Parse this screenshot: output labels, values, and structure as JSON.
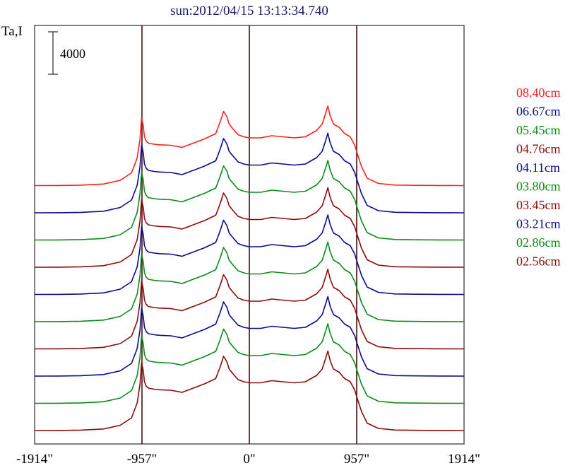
{
  "chart_data": {
    "type": "line",
    "title": "sun:2012/04/15 13:13:34.740",
    "ylabel": "Ta,I",
    "scale_bar_label": "4000",
    "scale_bar_value": 4000,
    "xlim": [
      -1914,
      1914
    ],
    "x_ticks": [
      -1914,
      -957,
      0,
      957,
      1914
    ],
    "x_tick_labels": [
      "-1914\"",
      "-957\"",
      "0\"",
      "957\"",
      "1914\""
    ],
    "vertical_lines": [
      -957,
      0,
      957
    ],
    "grid": false,
    "legend_position": "right",
    "x": [
      -1914,
      -1700,
      -1500,
      -1300,
      -1150,
      -1050,
      -1000,
      -975,
      -960,
      -945,
      -935,
      -920,
      -900,
      -850,
      -800,
      -700,
      -600,
      -500,
      -400,
      -300,
      -260,
      -230,
      -200,
      -180,
      -150,
      -100,
      -50,
      0,
      100,
      200,
      300,
      400,
      500,
      600,
      650,
      680,
      700,
      720,
      750,
      800,
      850,
      900,
      940,
      960,
      1000,
      1050,
      1150,
      1300,
      1500,
      1700,
      1914
    ],
    "series": [
      {
        "name": "08.40cm",
        "color": "#ff2020",
        "values": [
          0,
          10,
          40,
          150,
          500,
          1200,
          2600,
          4300,
          6400,
          5600,
          4600,
          4200,
          4000,
          3900,
          3850,
          3800,
          3600,
          4000,
          4400,
          4900,
          6000,
          7000,
          6500,
          5800,
          5400,
          4800,
          4600,
          4500,
          4500,
          4700,
          4600,
          4500,
          4600,
          5200,
          5800,
          6800,
          7500,
          6600,
          5800,
          5500,
          4900,
          4600,
          3800,
          3100,
          1800,
          700,
          200,
          50,
          20,
          5,
          0
        ]
      },
      {
        "name": "06.67cm",
        "color": "#0a0a8c",
        "values": [
          0,
          10,
          40,
          150,
          500,
          1200,
          2600,
          4300,
          6400,
          5600,
          4600,
          4200,
          4000,
          3900,
          3850,
          3800,
          3600,
          4000,
          4400,
          4900,
          6000,
          7000,
          6500,
          5800,
          5400,
          4800,
          4600,
          4500,
          4500,
          4700,
          4600,
          4500,
          4600,
          5200,
          5800,
          6800,
          7500,
          6600,
          5800,
          5500,
          4900,
          4600,
          3800,
          3100,
          1800,
          700,
          200,
          50,
          20,
          5,
          0
        ]
      },
      {
        "name": "05.45cm",
        "color": "#0a8c1a",
        "values": [
          0,
          10,
          40,
          150,
          500,
          1200,
          2600,
          4300,
          6400,
          5600,
          4600,
          4200,
          4000,
          3900,
          3850,
          3800,
          3600,
          4000,
          4400,
          4900,
          6000,
          7000,
          6500,
          5800,
          5400,
          4800,
          4600,
          4500,
          4500,
          4700,
          4600,
          4500,
          4600,
          5200,
          5800,
          6800,
          7500,
          6600,
          5800,
          5500,
          4900,
          4600,
          3800,
          3100,
          1800,
          700,
          200,
          50,
          20,
          5,
          0
        ]
      },
      {
        "name": "04.76cm",
        "color": "#8c0a0a",
        "values": [
          0,
          10,
          40,
          150,
          500,
          1200,
          2600,
          4300,
          6400,
          5600,
          4600,
          4200,
          4000,
          3900,
          3850,
          3800,
          3600,
          4000,
          4400,
          4900,
          6000,
          7000,
          6500,
          5800,
          5400,
          4800,
          4600,
          4500,
          4500,
          4700,
          4600,
          4500,
          4600,
          5200,
          5800,
          6800,
          7500,
          6600,
          5800,
          5500,
          4900,
          4600,
          3800,
          3100,
          1800,
          700,
          200,
          50,
          20,
          5,
          0
        ]
      },
      {
        "name": "04.11cm",
        "color": "#0a0a8c",
        "values": [
          0,
          10,
          40,
          150,
          500,
          1200,
          2600,
          4300,
          6400,
          5600,
          4600,
          4200,
          4000,
          3900,
          3850,
          3800,
          3600,
          4000,
          4400,
          4900,
          6000,
          7000,
          6500,
          5800,
          5400,
          4800,
          4600,
          4500,
          4500,
          4700,
          4600,
          4500,
          4600,
          5200,
          5800,
          6800,
          7500,
          6600,
          5800,
          5500,
          4900,
          4600,
          3800,
          3100,
          1800,
          700,
          200,
          50,
          20,
          5,
          0
        ]
      },
      {
        "name": "03.80cm",
        "color": "#0a8c1a",
        "values": [
          0,
          10,
          40,
          150,
          500,
          1200,
          2600,
          4300,
          6400,
          5600,
          4600,
          4200,
          4000,
          3900,
          3850,
          3800,
          3600,
          4000,
          4400,
          4900,
          6000,
          7000,
          6500,
          5800,
          5400,
          4800,
          4600,
          4500,
          4500,
          4700,
          4600,
          4500,
          4600,
          5200,
          5800,
          6800,
          7500,
          6600,
          5800,
          5500,
          4900,
          4600,
          3800,
          3100,
          1800,
          700,
          200,
          50,
          20,
          5,
          0
        ]
      },
      {
        "name": "03.45cm",
        "color": "#8c0a0a",
        "values": [
          0,
          10,
          40,
          150,
          500,
          1200,
          2600,
          4300,
          6400,
          5600,
          4600,
          4200,
          4000,
          3900,
          3850,
          3800,
          3600,
          4000,
          4400,
          4900,
          6000,
          7000,
          6500,
          5800,
          5400,
          4800,
          4600,
          4500,
          4500,
          4700,
          4600,
          4500,
          4600,
          5200,
          5800,
          6800,
          7500,
          6600,
          5800,
          5500,
          4900,
          4600,
          3800,
          3100,
          1800,
          700,
          200,
          50,
          20,
          5,
          0
        ]
      },
      {
        "name": "03.21cm",
        "color": "#0a0a8c",
        "values": [
          0,
          10,
          40,
          150,
          500,
          1200,
          2600,
          4300,
          6400,
          5600,
          4600,
          4200,
          4000,
          3900,
          3850,
          3800,
          3600,
          4000,
          4400,
          4900,
          6000,
          7000,
          6500,
          5800,
          5400,
          4800,
          4600,
          4500,
          4500,
          4700,
          4600,
          4500,
          4600,
          5200,
          5800,
          6800,
          7500,
          6600,
          5800,
          5500,
          4900,
          4600,
          3800,
          3100,
          1800,
          700,
          200,
          50,
          20,
          5,
          0
        ]
      },
      {
        "name": "02.86cm",
        "color": "#0a8c1a",
        "values": [
          0,
          10,
          40,
          150,
          500,
          1200,
          2600,
          4300,
          6400,
          5600,
          4600,
          4200,
          4000,
          3900,
          3850,
          3800,
          3600,
          4000,
          4400,
          4900,
          6000,
          7000,
          6500,
          5800,
          5400,
          4800,
          4600,
          4500,
          4500,
          4700,
          4600,
          4500,
          4600,
          5200,
          5800,
          6800,
          7500,
          6600,
          5800,
          5500,
          4900,
          4600,
          3800,
          3100,
          1800,
          700,
          200,
          50,
          20,
          5,
          0
        ]
      },
      {
        "name": "02.56cm",
        "color": "#8c0a0a",
        "values": [
          0,
          10,
          40,
          150,
          500,
          1200,
          2600,
          4300,
          6400,
          5600,
          4600,
          4200,
          4000,
          3900,
          3850,
          3800,
          3600,
          4000,
          4400,
          4900,
          6000,
          7000,
          6500,
          5800,
          5400,
          4800,
          4600,
          4500,
          4500,
          4700,
          4600,
          4500,
          4600,
          5200,
          5800,
          6800,
          7500,
          6600,
          5800,
          5500,
          4900,
          4600,
          3800,
          3100,
          1800,
          700,
          200,
          50,
          20,
          5,
          0
        ]
      }
    ]
  }
}
